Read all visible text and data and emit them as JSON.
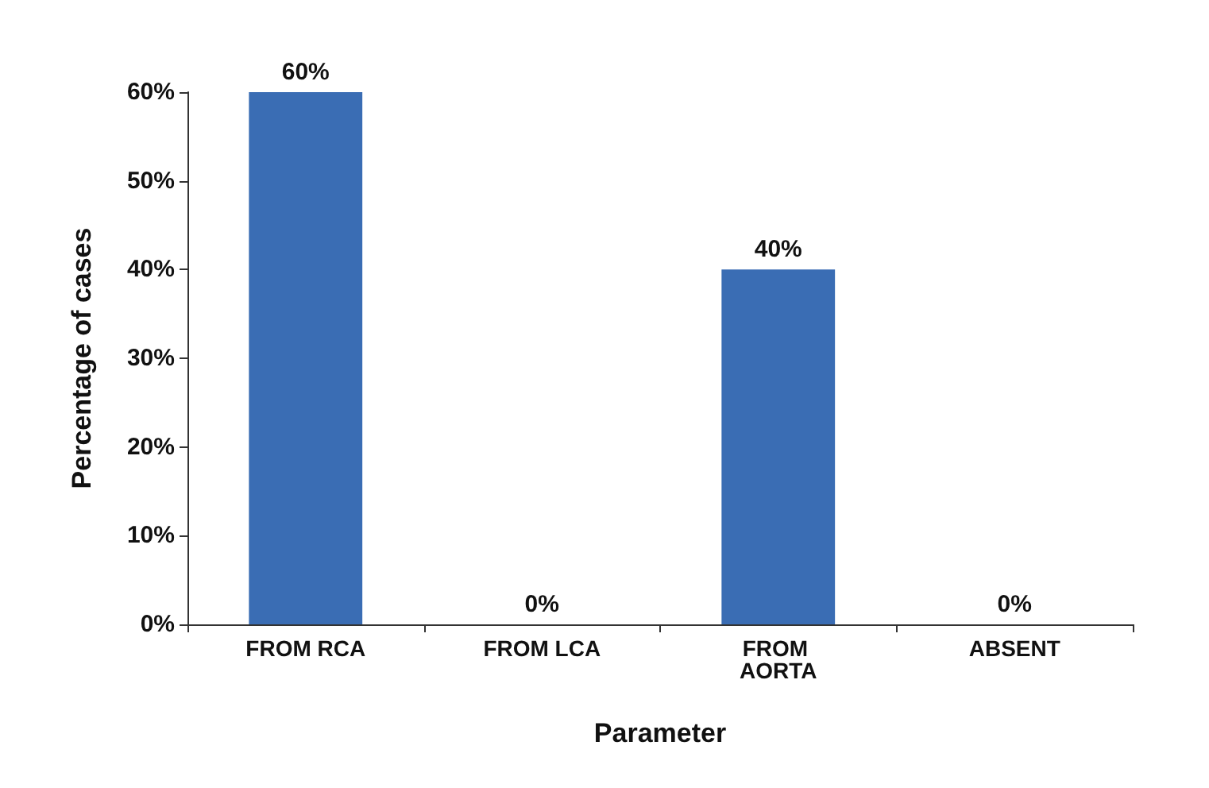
{
  "chart_data": {
    "type": "bar",
    "xlabel": "Parameter",
    "ylabel": "Percentage of cases",
    "categories": [
      "FROM RCA",
      "FROM LCA",
      "FROM AORTA",
      "ABSENT"
    ],
    "values": [
      60,
      0,
      40,
      0
    ],
    "value_labels": [
      "60%",
      "0%",
      "40%",
      "0%"
    ],
    "color": "#3a6db4",
    "ylim": [
      0,
      60
    ],
    "yticks": [
      {
        "value": 0,
        "label": "0%"
      },
      {
        "value": 10,
        "label": "10%"
      },
      {
        "value": 20,
        "label": "20%"
      },
      {
        "value": 30,
        "label": "30%"
      },
      {
        "value": 40,
        "label": "40%"
      },
      {
        "value": 50,
        "label": "50%"
      },
      {
        "value": 60,
        "label": "60%"
      }
    ],
    "grid": false
  }
}
